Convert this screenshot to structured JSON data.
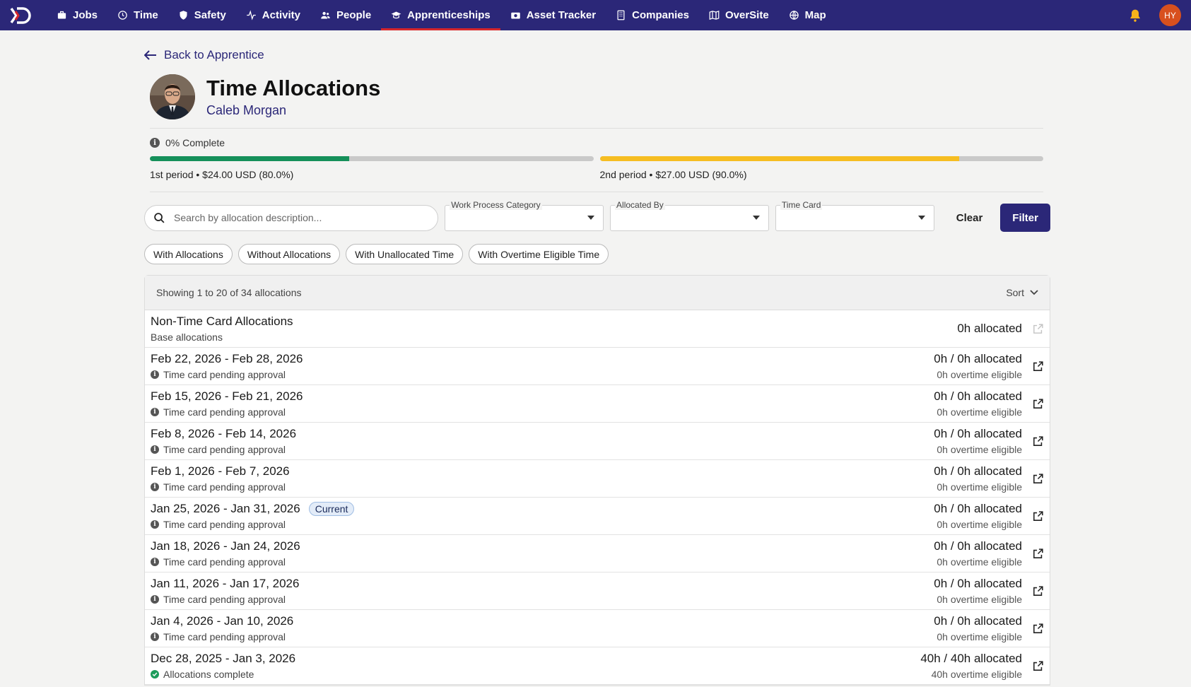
{
  "nav": {
    "items": [
      {
        "label": "Jobs",
        "icon": "briefcase-icon"
      },
      {
        "label": "Time",
        "icon": "clock-icon"
      },
      {
        "label": "Safety",
        "icon": "shield-icon"
      },
      {
        "label": "Activity",
        "icon": "activity-icon"
      },
      {
        "label": "People",
        "icon": "people-icon"
      },
      {
        "label": "Apprenticeships",
        "icon": "graduation-cap-icon"
      },
      {
        "label": "Asset Tracker",
        "icon": "camera-icon"
      },
      {
        "label": "Companies",
        "icon": "building-icon"
      },
      {
        "label": "OverSite",
        "icon": "map-book-icon"
      },
      {
        "label": "Map",
        "icon": "globe-icon"
      }
    ],
    "active": "Apprenticeships",
    "user_initials": "HY"
  },
  "back_link": "Back to Apprentice",
  "page": {
    "title": "Time Allocations",
    "apprentice_name": "Caleb Morgan",
    "completion": "0% Complete"
  },
  "periods": [
    {
      "label": "1st period • $24.00 USD (80.0%)",
      "fill_fraction": 0.45,
      "color": "#15905a"
    },
    {
      "label": "2nd period • $27.00 USD (90.0%)",
      "fill_fraction": 0.81,
      "color": "#f6bd22"
    }
  ],
  "filters": {
    "search_placeholder": "Search by allocation description...",
    "work_process_label": "Work Process Category",
    "allocated_by_label": "Allocated By",
    "time_card_label": "Time Card",
    "clear_label": "Clear",
    "filter_label": "Filter"
  },
  "chips": [
    "With Allocations",
    "Without Allocations",
    "With Unallocated Time",
    "With Overtime Eligible Time"
  ],
  "list": {
    "summary": "Showing 1 to 20 of 34 allocations",
    "sort_label": "Sort",
    "base_row": {
      "title": "Non-Time Card Allocations",
      "subtitle": "Base allocations",
      "amount": "0h allocated"
    },
    "rows": [
      {
        "title": "Feb 22, 2026 - Feb 28, 2026",
        "status": "Time card pending approval",
        "amount": "0h / 0h allocated",
        "overtime": "0h overtime eligible",
        "current": false,
        "complete": false
      },
      {
        "title": "Feb 15, 2026 - Feb 21, 2026",
        "status": "Time card pending approval",
        "amount": "0h / 0h allocated",
        "overtime": "0h overtime eligible",
        "current": false,
        "complete": false
      },
      {
        "title": "Feb 8, 2026 - Feb 14, 2026",
        "status": "Time card pending approval",
        "amount": "0h / 0h allocated",
        "overtime": "0h overtime eligible",
        "current": false,
        "complete": false
      },
      {
        "title": "Feb 1, 2026 - Feb 7, 2026",
        "status": "Time card pending approval",
        "amount": "0h / 0h allocated",
        "overtime": "0h overtime eligible",
        "current": false,
        "complete": false
      },
      {
        "title": "Jan 25, 2026 - Jan 31, 2026",
        "status": "Time card pending approval",
        "amount": "0h / 0h allocated",
        "overtime": "0h overtime eligible",
        "current": true,
        "complete": false
      },
      {
        "title": "Jan 18, 2026 - Jan 24, 2026",
        "status": "Time card pending approval",
        "amount": "0h / 0h allocated",
        "overtime": "0h overtime eligible",
        "current": false,
        "complete": false
      },
      {
        "title": "Jan 11, 2026 - Jan 17, 2026",
        "status": "Time card pending approval",
        "amount": "0h / 0h allocated",
        "overtime": "0h overtime eligible",
        "current": false,
        "complete": false
      },
      {
        "title": "Jan 4, 2026 - Jan 10, 2026",
        "status": "Time card pending approval",
        "amount": "0h / 0h allocated",
        "overtime": "0h overtime eligible",
        "current": false,
        "complete": false
      },
      {
        "title": "Dec 28, 2025 - Jan 3, 2026",
        "status": "Allocations complete",
        "amount": "40h / 40h allocated",
        "overtime": "40h overtime eligible",
        "current": false,
        "complete": true
      }
    ],
    "current_badge": "Current"
  }
}
